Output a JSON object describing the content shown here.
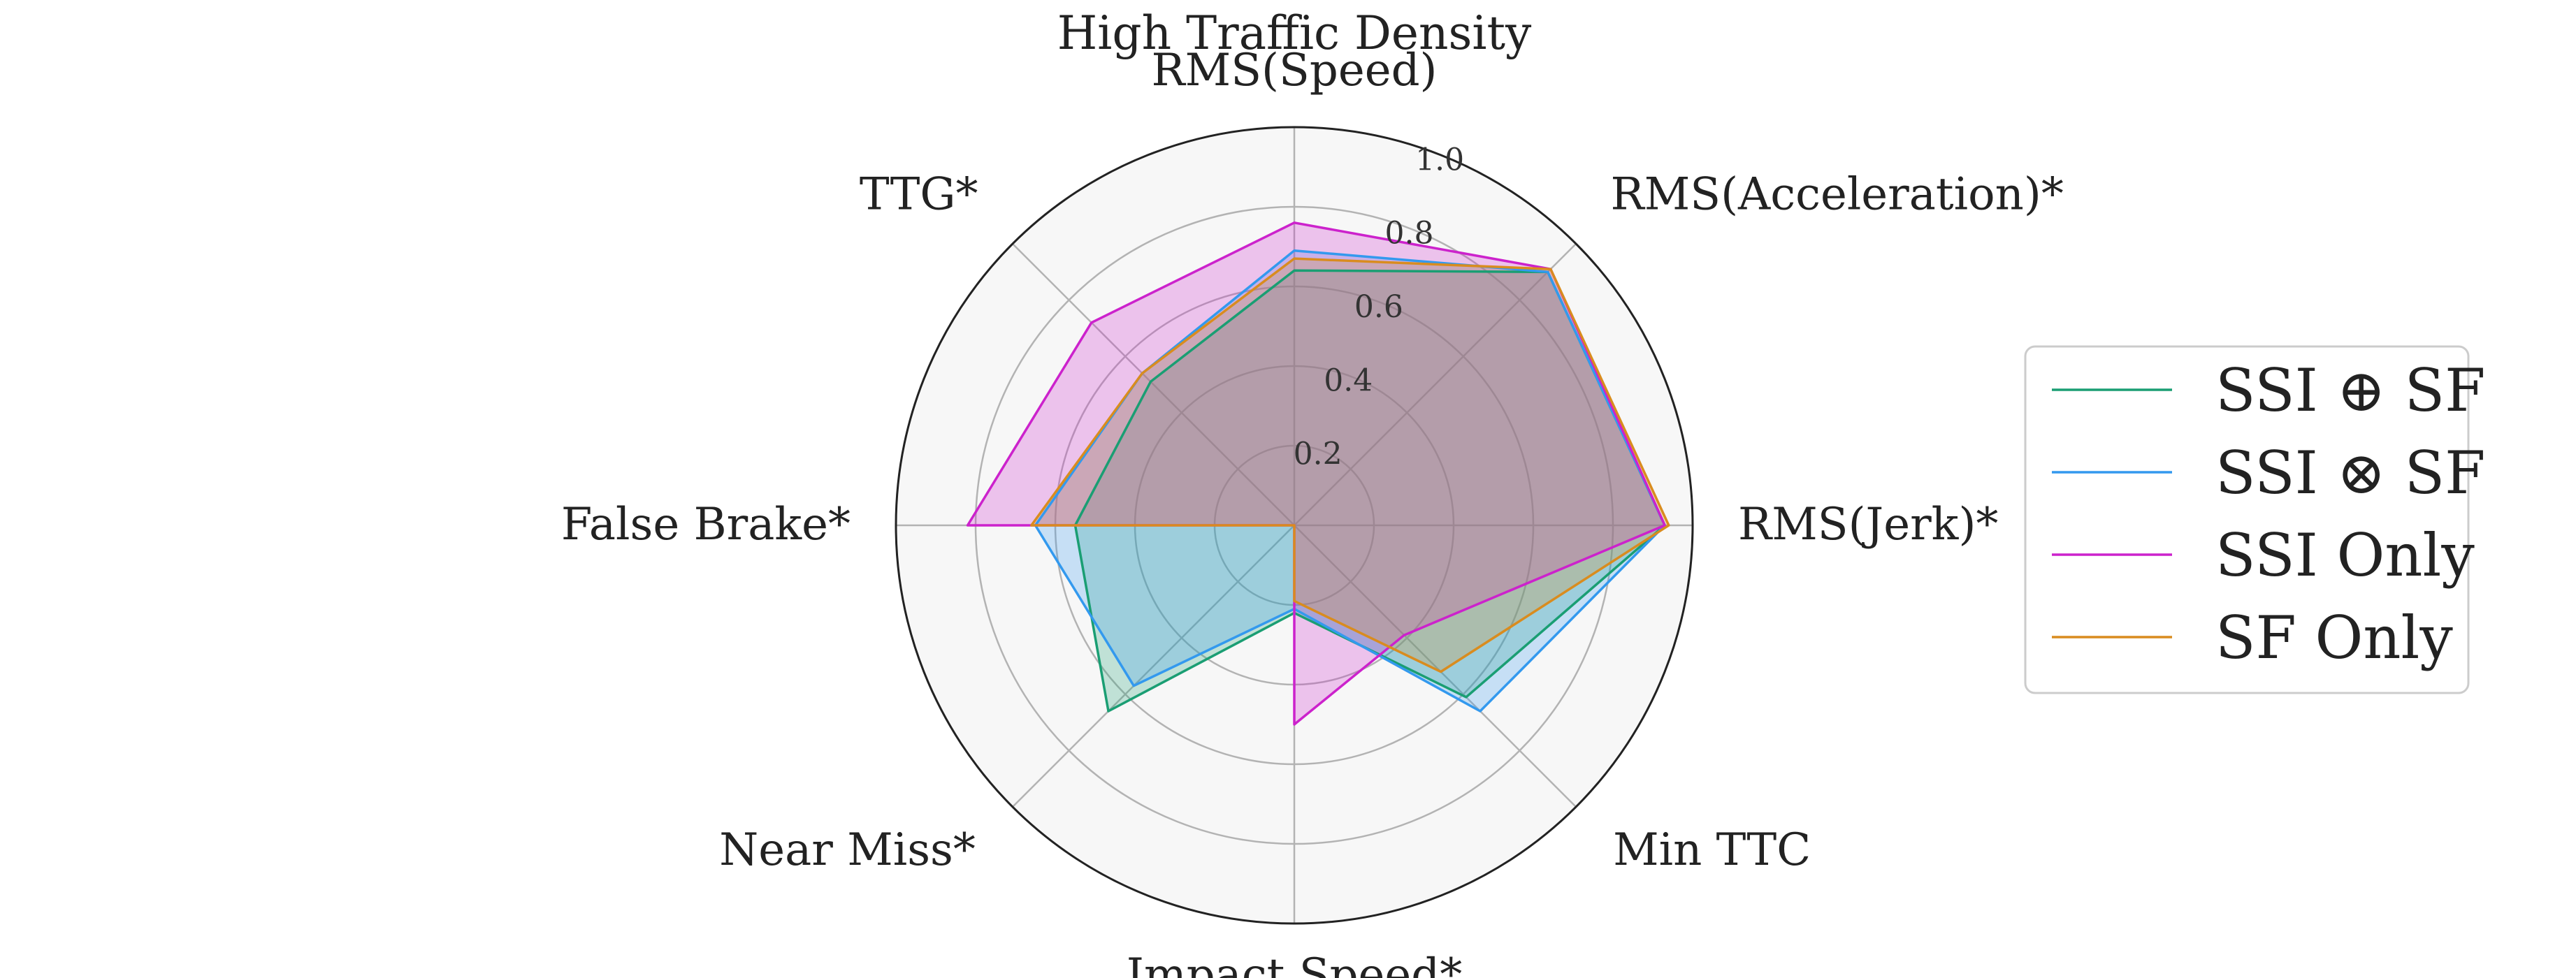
{
  "chart_data": {
    "type": "radar",
    "title": "High Traffic Density",
    "axes": [
      "RMS(Speed)",
      "RMS(Acceleration)*",
      "RMS(Jerk)*",
      "Min TTC",
      "Impact Speed*",
      "Near Miss*",
      "False Brake*",
      "TTG*"
    ],
    "rlim": [
      0,
      1.0
    ],
    "rticks": [
      0.2,
      0.4,
      0.6,
      0.8,
      1.0
    ],
    "rtick_labels": [
      "0.2",
      "0.4",
      "0.6",
      "0.8",
      "1.0"
    ],
    "grid": true,
    "legend_position": "right",
    "series": [
      {
        "name": "SSI ⊕ SF",
        "color": "#1a9e73",
        "values": [
          0.64,
          0.9,
          0.93,
          0.61,
          0.22,
          0.66,
          0.55,
          0.51
        ]
      },
      {
        "name": "SSI ⊗ SF",
        "color": "#3399ee",
        "values": [
          0.69,
          0.9,
          0.93,
          0.66,
          0.21,
          0.57,
          0.65,
          0.54
        ]
      },
      {
        "name": "SSI Only",
        "color": "#cc22cc",
        "values": [
          0.76,
          0.91,
          0.93,
          0.39,
          0.5,
          0.0,
          0.82,
          0.72
        ]
      },
      {
        "name": "SF Only",
        "color": "#d98c1f",
        "values": [
          0.67,
          0.91,
          0.94,
          0.52,
          0.19,
          0.0,
          0.66,
          0.54
        ]
      }
    ]
  }
}
